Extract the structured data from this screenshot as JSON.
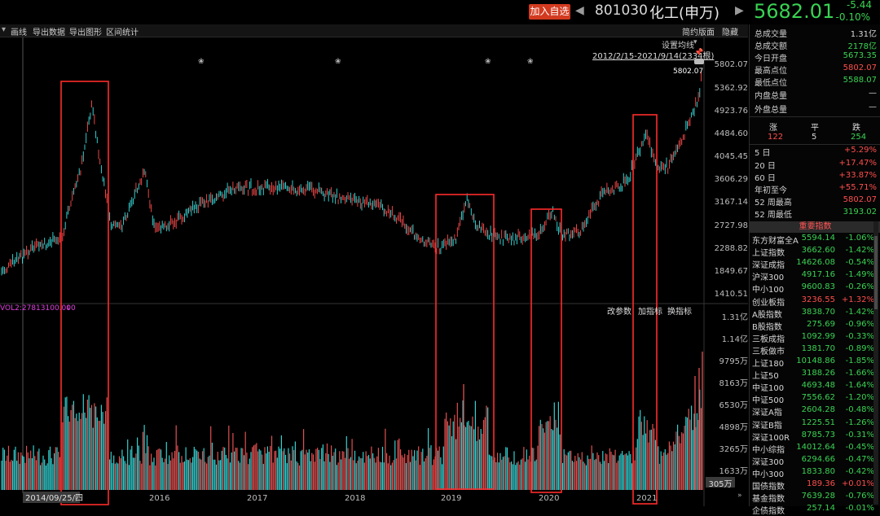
{
  "header": {
    "add_watchlist": "加入自选",
    "code": "801030",
    "name": "化工(申万)",
    "price": "5682.01",
    "change": "-5.44",
    "change_pct": "-0.10%",
    "prev_icon": "chevron-left-icon",
    "next_icon": "chevron-right-icon"
  },
  "toolbar": {
    "items": [
      "画线",
      "导出数据",
      "导出图形",
      "区间统计"
    ],
    "right_items": [
      "简约版面",
      "隐藏"
    ],
    "menu_icon": "triangle-down-icon"
  },
  "chart": {
    "ma_setting": "设置均线",
    "range_label": "2012/2/15-2021/9/14(2334根)",
    "max_label": "5802.07",
    "price_ticks": [
      "5802.07",
      "5362.92",
      "4923.76",
      "4484.60",
      "4045.45",
      "3606.29",
      "3167.14",
      "2727.98",
      "2288.82",
      "1849.67",
      "1410.51"
    ],
    "vol_label": "VOL2:27813100.000",
    "vol_buttons": [
      "改参数",
      "加指标",
      "换指标"
    ],
    "vol_ticks": [
      "1.31亿",
      "1.14亿",
      "9795万",
      "8163万",
      "6530万",
      "4898万",
      "3265万",
      "1633万"
    ],
    "vol_bottom": "305万",
    "date_cursor": "2014/09/25/四",
    "year_labels": [
      "2016",
      "2017",
      "2018",
      "2019",
      "2020",
      "2021"
    ],
    "accent_red": "#ff2a2a",
    "up_color": "#ff4d4d",
    "down_color": "#39e0e0"
  },
  "quote": [
    {
      "k": "总成交量",
      "v": "1.31亿",
      "c": "white"
    },
    {
      "k": "总成交额",
      "v": "2178亿",
      "c": "green"
    },
    {
      "k": "今日开盘",
      "v": "5673.35",
      "c": "green"
    },
    {
      "k": "最高点位",
      "v": "5802.07",
      "c": "red"
    },
    {
      "k": "最低点位",
      "v": "5588.07",
      "c": "green"
    },
    {
      "k": "内盘总量",
      "v": "—",
      "c": "white"
    },
    {
      "k": "外盘总量",
      "v": "—",
      "c": "white"
    }
  ],
  "breadth": {
    "labels": [
      "涨",
      "平",
      "跌"
    ],
    "values": [
      "122",
      "5",
      "254"
    ]
  },
  "perf": [
    {
      "k": "5 日",
      "v": "+5.29%",
      "c": "red"
    },
    {
      "k": "20 日",
      "v": "+17.47%",
      "c": "red"
    },
    {
      "k": "60 日",
      "v": "+33.87%",
      "c": "red"
    },
    {
      "k": "年初至今",
      "v": "+55.71%",
      "c": "red"
    },
    {
      "k": "52 周最高",
      "v": "5802.07",
      "c": "red"
    },
    {
      "k": "52 周最低",
      "v": "3193.02",
      "c": "green"
    }
  ],
  "index_header": "重要指数",
  "indices": [
    {
      "n": "东方财富全A",
      "p": "5594.14",
      "c": "-1.06%",
      "col": "green"
    },
    {
      "n": "上证指数",
      "p": "3662.60",
      "c": "-1.42%",
      "col": "green"
    },
    {
      "n": "深证成指",
      "p": "14626.08",
      "c": "-0.54%",
      "col": "green"
    },
    {
      "n": "沪深300",
      "p": "4917.16",
      "c": "-1.49%",
      "col": "green"
    },
    {
      "n": "中小100",
      "p": "9600.83",
      "c": "-0.26%",
      "col": "green"
    },
    {
      "n": "创业板指",
      "p": "3236.55",
      "c": "+1.32%",
      "col": "red"
    },
    {
      "n": "A股指数",
      "p": "3838.70",
      "c": "-1.42%",
      "col": "green"
    },
    {
      "n": "B股指数",
      "p": "275.69",
      "c": "-0.96%",
      "col": "green"
    },
    {
      "n": "三板成指",
      "p": "1092.99",
      "c": "-0.33%",
      "col": "green"
    },
    {
      "n": "三板做市",
      "p": "1381.70",
      "c": "-0.89%",
      "col": "green"
    },
    {
      "n": "上证180",
      "p": "10148.86",
      "c": "-1.85%",
      "col": "green"
    },
    {
      "n": "上证50",
      "p": "3188.26",
      "c": "-1.66%",
      "col": "green"
    },
    {
      "n": "中证100",
      "p": "4693.48",
      "c": "-1.64%",
      "col": "green"
    },
    {
      "n": "中证500",
      "p": "7556.62",
      "c": "-1.20%",
      "col": "green"
    },
    {
      "n": "深证A指",
      "p": "2604.28",
      "c": "-0.48%",
      "col": "green"
    },
    {
      "n": "深证B指",
      "p": "1225.51",
      "c": "-1.26%",
      "col": "green"
    },
    {
      "n": "深证100R",
      "p": "8785.73",
      "c": "-0.31%",
      "col": "green"
    },
    {
      "n": "中小综指",
      "p": "14012.64",
      "c": "-0.45%",
      "col": "green"
    },
    {
      "n": "深证300",
      "p": "6294.66",
      "c": "-0.47%",
      "col": "green"
    },
    {
      "n": "中小300",
      "p": "1833.80",
      "c": "-0.42%",
      "col": "green"
    },
    {
      "n": "国债指数",
      "p": "189.36",
      "c": "+0.01%",
      "col": "red"
    },
    {
      "n": "基金指数",
      "p": "7639.28",
      "c": "-0.76%",
      "col": "green"
    },
    {
      "n": "企债指数",
      "p": "257.14",
      "c": "-0.01%",
      "col": "green"
    }
  ]
}
